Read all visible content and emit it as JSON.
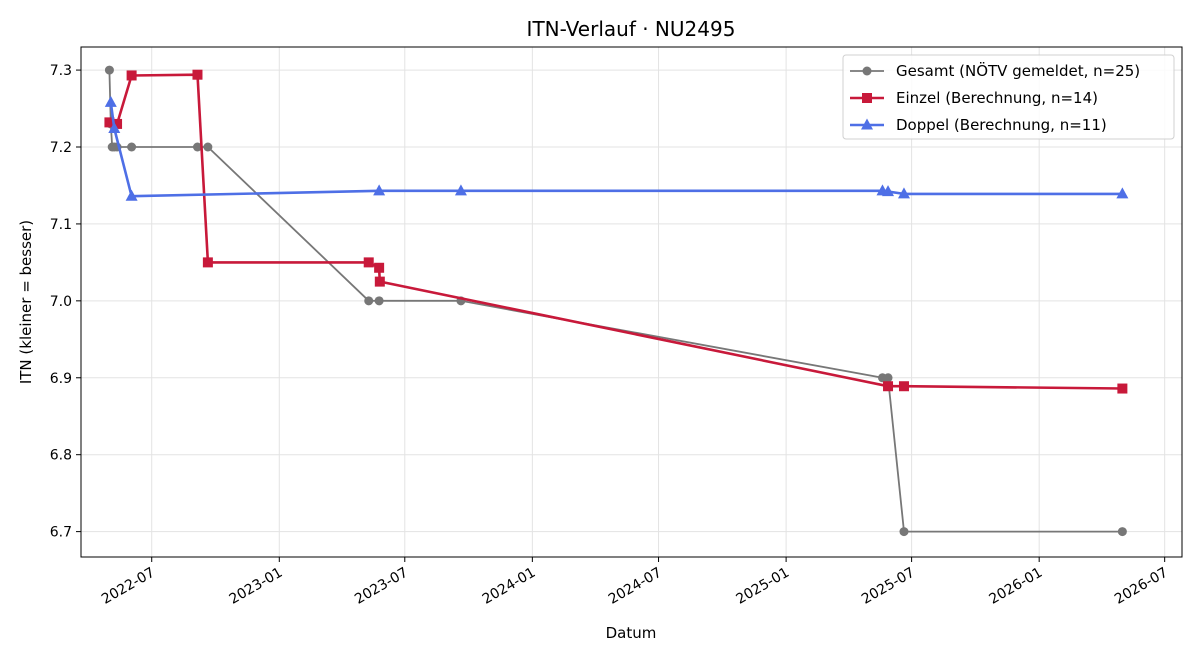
{
  "chart_data": {
    "type": "line",
    "title": "ITN-Verlauf · NU2495",
    "xlabel": "Datum",
    "ylabel": "ITN  (kleiner = besser)",
    "xlim": [
      "2022-03-21",
      "2026-07-26"
    ],
    "ylim": [
      6.667,
      7.33
    ],
    "x_ticks": [
      "2022-07-01",
      "2023-01-01",
      "2023-07-01",
      "2024-01-01",
      "2024-07-01",
      "2025-01-01",
      "2025-07-01",
      "2026-01-01",
      "2026-07-01"
    ],
    "x_tick_labels": [
      "2022-07",
      "2023-01",
      "2023-07",
      "2024-01",
      "2024-07",
      "2025-01",
      "2025-07",
      "2026-01",
      "2026-07"
    ],
    "y_ticks": [
      6.7,
      6.8,
      6.9,
      7.0,
      7.1,
      7.2,
      7.3
    ],
    "y_tick_labels": [
      "6.7",
      "6.8",
      "6.9",
      "7.0",
      "7.1",
      "7.2",
      "7.3"
    ],
    "grid": true,
    "legend_position": "top-right",
    "series": [
      {
        "name": "Gesamt (NÖTV gemeldet, n=25)",
        "color": "#777777",
        "marker": "circle",
        "points": [
          {
            "x": "2022-05-01",
            "y": 7.3
          },
          {
            "x": "2022-05-03",
            "y": 7.23
          },
          {
            "x": "2022-05-05",
            "y": 7.2
          },
          {
            "x": "2022-05-08",
            "y": 7.2
          },
          {
            "x": "2022-05-12",
            "y": 7.2
          },
          {
            "x": "2022-06-02",
            "y": 7.2
          },
          {
            "x": "2022-09-05",
            "y": 7.2
          },
          {
            "x": "2022-09-20",
            "y": 7.2
          },
          {
            "x": "2023-05-10",
            "y": 7.0
          },
          {
            "x": "2023-05-25",
            "y": 7.0
          },
          {
            "x": "2023-09-20",
            "y": 7.0
          },
          {
            "x": "2025-05-20",
            "y": 6.9
          },
          {
            "x": "2025-05-28",
            "y": 6.9
          },
          {
            "x": "2025-06-20",
            "y": 6.7
          },
          {
            "x": "2026-05-01",
            "y": 6.7
          }
        ]
      },
      {
        "name": "Einzel (Berechnung, n=14)",
        "color": "#c8193a",
        "marker": "square",
        "points": [
          {
            "x": "2022-05-01",
            "y": 7.232
          },
          {
            "x": "2022-05-12",
            "y": 7.23
          },
          {
            "x": "2022-06-02",
            "y": 7.293
          },
          {
            "x": "2022-09-05",
            "y": 7.294
          },
          {
            "x": "2022-09-20",
            "y": 7.05
          },
          {
            "x": "2023-05-10",
            "y": 7.05
          },
          {
            "x": "2023-05-25",
            "y": 7.043
          },
          {
            "x": "2023-05-26",
            "y": 7.025
          },
          {
            "x": "2025-05-28",
            "y": 6.889
          },
          {
            "x": "2025-06-20",
            "y": 6.889
          },
          {
            "x": "2026-05-01",
            "y": 6.886
          }
        ]
      },
      {
        "name": "Doppel (Berechnung, n=11)",
        "color": "#4e6fe6",
        "marker": "triangle",
        "points": [
          {
            "x": "2022-05-03",
            "y": 7.258
          },
          {
            "x": "2022-05-08",
            "y": 7.224
          },
          {
            "x": "2022-06-02",
            "y": 7.136
          },
          {
            "x": "2023-05-25",
            "y": 7.143
          },
          {
            "x": "2023-09-20",
            "y": 7.143
          },
          {
            "x": "2025-05-20",
            "y": 7.143
          },
          {
            "x": "2025-05-28",
            "y": 7.142
          },
          {
            "x": "2025-06-20",
            "y": 7.139
          },
          {
            "x": "2026-05-01",
            "y": 7.139
          }
        ]
      }
    ]
  }
}
